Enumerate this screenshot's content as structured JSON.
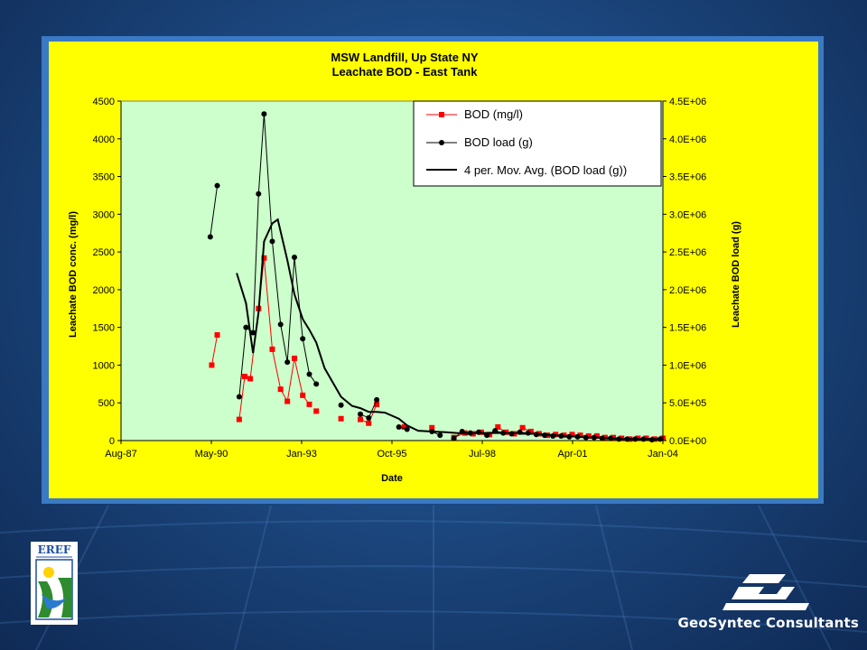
{
  "slide": {
    "company_name": "GeoSyntec Consultants",
    "logo_text": "EREF",
    "background_color": "#1c4880"
  },
  "chart_data": {
    "type": "line",
    "title": "MSW Landfill, Up State NY",
    "subtitle": "Leachate BOD - East Tank",
    "xlabel": "Date",
    "ylabel": "Leachate BOD conc. (mg/l)",
    "y2label": "Leachate BOD load (g)",
    "xlim": [
      "1987-08-01",
      "2004-01-01"
    ],
    "ylim": [
      0,
      4500
    ],
    "y2lim": [
      0,
      4500000
    ],
    "x_ticks": [
      "Aug-87",
      "May-90",
      "Jan-93",
      "Oct-95",
      "Jul-98",
      "Apr-01",
      "Jan-04"
    ],
    "y_ticks": [
      "0",
      "500",
      "1000",
      "1500",
      "2000",
      "2500",
      "3000",
      "3500",
      "4000",
      "4500"
    ],
    "y2_ticks": [
      "0.0E+00",
      "5.0E+05",
      "1.0E+06",
      "1.5E+06",
      "2.0E+06",
      "2.5E+06",
      "3.0E+06",
      "3.5E+06",
      "4.0E+06",
      "4.5E+06"
    ],
    "grid": false,
    "plot_background": "#ccffcc",
    "legend_position": "top-right",
    "series": [
      {
        "name": "BOD (mg/l)",
        "axis": "left",
        "color": "#ff0000",
        "marker": "square",
        "segments": [
          [
            [
              "1990-05-01",
              1000
            ],
            [
              "1990-07-01",
              1400
            ]
          ],
          [
            [
              "1991-03-01",
              280
            ],
            [
              "1991-05-01",
              850
            ],
            [
              "1991-07-01",
              820
            ],
            [
              "1991-10-01",
              1750
            ],
            [
              "1991-12-01",
              2420
            ],
            [
              "1992-03-01",
              1210
            ],
            [
              "1992-06-01",
              680
            ],
            [
              "1992-08-15",
              520
            ],
            [
              "1992-11-01",
              1090
            ],
            [
              "1993-02-01",
              600
            ],
            [
              "1993-04-15",
              480
            ]
          ],
          [
            [
              "1993-07-01",
              390
            ]
          ],
          [
            [
              "1994-04-01",
              290
            ]
          ],
          [
            [
              "1994-11-01",
              280
            ],
            [
              "1995-02-01",
              230
            ],
            [
              "1995-05-01",
              480
            ]
          ],
          [
            [
              "1996-03-01",
              180
            ]
          ],
          [
            [
              "1997-01-01",
              170
            ]
          ],
          [
            [
              "1997-09-01",
              40
            ],
            [
              "1998-01-01",
              100
            ],
            [
              "1998-04-01",
              90
            ],
            [
              "1998-07-01",
              110
            ],
            [
              "1998-10-01",
              80
            ],
            [
              "1999-01-01",
              180
            ],
            [
              "1999-04-01",
              110
            ],
            [
              "1999-07-01",
              90
            ],
            [
              "1999-10-01",
              170
            ],
            [
              "2000-01-01",
              120
            ],
            [
              "2000-04-01",
              90
            ],
            [
              "2000-07-01",
              70
            ],
            [
              "2000-10-01",
              80
            ],
            [
              "2001-01-01",
              70
            ],
            [
              "2001-04-01",
              80
            ],
            [
              "2001-07-01",
              70
            ],
            [
              "2001-10-01",
              60
            ],
            [
              "2002-01-01",
              60
            ],
            [
              "2002-04-01",
              40
            ],
            [
              "2002-07-01",
              40
            ],
            [
              "2002-10-01",
              30
            ],
            [
              "2003-01-01",
              20
            ],
            [
              "2003-04-01",
              30
            ],
            [
              "2003-07-01",
              30
            ],
            [
              "2003-10-01",
              20
            ],
            [
              "2004-01-01",
              30
            ]
          ]
        ]
      },
      {
        "name": "BOD load (g)",
        "axis": "right",
        "color": "#000000",
        "marker": "circle",
        "segments": [
          [
            [
              "1990-04-15",
              2700000
            ],
            [
              "1990-07-01",
              3380000
            ]
          ],
          [
            [
              "1991-03-01",
              580000
            ],
            [
              "1991-05-15",
              1500000
            ],
            [
              "1991-08-01",
              1430000
            ],
            [
              "1991-10-01",
              3270000
            ],
            [
              "1991-12-01",
              4330000
            ],
            [
              "1992-03-01",
              2640000
            ],
            [
              "1992-06-01",
              1540000
            ],
            [
              "1992-08-15",
              1040000
            ],
            [
              "1992-11-01",
              2430000
            ],
            [
              "1993-02-01",
              1350000
            ],
            [
              "1993-04-15",
              880000
            ],
            [
              "1993-07-01",
              750000
            ]
          ],
          [
            [
              "1994-04-01",
              470000
            ]
          ],
          [
            [
              "1994-11-01",
              350000
            ],
            [
              "1995-02-01",
              300000
            ],
            [
              "1995-05-01",
              540000
            ]
          ],
          [
            [
              "1996-01-01",
              180000
            ],
            [
              "1996-04-01",
              150000
            ]
          ],
          [
            [
              "1997-01-01",
              120000
            ],
            [
              "1997-04-01",
              70000
            ]
          ],
          [
            [
              "1997-09-01",
              30000
            ],
            [
              "1997-12-01",
              120000
            ],
            [
              "1998-03-01",
              100000
            ],
            [
              "1998-06-01",
              110000
            ],
            [
              "1998-09-01",
              70000
            ],
            [
              "1998-12-01",
              130000
            ],
            [
              "1999-03-01",
              100000
            ],
            [
              "1999-06-01",
              90000
            ],
            [
              "1999-09-01",
              110000
            ],
            [
              "1999-12-01",
              100000
            ],
            [
              "2000-03-01",
              80000
            ],
            [
              "2000-06-01",
              70000
            ],
            [
              "2000-09-01",
              60000
            ],
            [
              "2000-12-01",
              60000
            ],
            [
              "2001-03-01",
              50000
            ],
            [
              "2001-06-01",
              50000
            ],
            [
              "2001-09-01",
              40000
            ],
            [
              "2001-12-01",
              40000
            ],
            [
              "2002-03-01",
              30000
            ],
            [
              "2002-06-01",
              30000
            ],
            [
              "2002-09-01",
              20000
            ],
            [
              "2002-12-01",
              20000
            ],
            [
              "2003-03-01",
              20000
            ],
            [
              "2003-06-01",
              20000
            ],
            [
              "2003-09-01",
              10000
            ],
            [
              "2003-12-01",
              20000
            ]
          ]
        ]
      },
      {
        "name": "4 per. Mov. Avg. (BOD load (g))",
        "axis": "right",
        "color": "#000000",
        "marker": "none",
        "segments": [
          [
            [
              "1991-02-01",
              2220000
            ],
            [
              "1991-05-15",
              1820000
            ],
            [
              "1991-08-01",
              1160000
            ],
            [
              "1991-10-01",
              1700000
            ],
            [
              "1991-12-01",
              2640000
            ],
            [
              "1992-03-01",
              2880000
            ],
            [
              "1992-05-01",
              2930000
            ],
            [
              "1992-08-15",
              2390000
            ],
            [
              "1992-11-01",
              1940000
            ],
            [
              "1993-02-01",
              1610000
            ],
            [
              "1993-04-15",
              1470000
            ],
            [
              "1993-07-01",
              1300000
            ],
            [
              "1993-10-01",
              960000
            ],
            [
              "1994-04-01",
              580000
            ],
            [
              "1994-08-01",
              460000
            ],
            [
              "1994-11-01",
              430000
            ],
            [
              "1995-02-01",
              380000
            ],
            [
              "1995-05-01",
              380000
            ],
            [
              "1995-08-01",
              370000
            ],
            [
              "1996-01-01",
              290000
            ],
            [
              "1996-04-01",
              200000
            ],
            [
              "1996-08-01",
              130000
            ],
            [
              "1997-01-01",
              120000
            ],
            [
              "1997-06-01",
              110000
            ],
            [
              "1997-10-01",
              100000
            ],
            [
              "1998-02-01",
              90000
            ],
            [
              "1998-06-01",
              100000
            ],
            [
              "1998-10-01",
              100000
            ],
            [
              "1999-02-01",
              100000
            ],
            [
              "1999-06-01",
              100000
            ],
            [
              "1999-10-01",
              90000
            ],
            [
              "2000-02-01",
              90000
            ],
            [
              "2000-06-01",
              80000
            ],
            [
              "2000-10-01",
              70000
            ],
            [
              "2001-02-01",
              60000
            ],
            [
              "2001-06-01",
              50000
            ],
            [
              "2001-10-01",
              40000
            ],
            [
              "2002-02-01",
              40000
            ],
            [
              "2002-06-01",
              30000
            ],
            [
              "2002-10-01",
              20000
            ],
            [
              "2003-02-01",
              20000
            ],
            [
              "2003-06-01",
              20000
            ],
            [
              "2003-12-01",
              20000
            ]
          ]
        ]
      }
    ]
  }
}
